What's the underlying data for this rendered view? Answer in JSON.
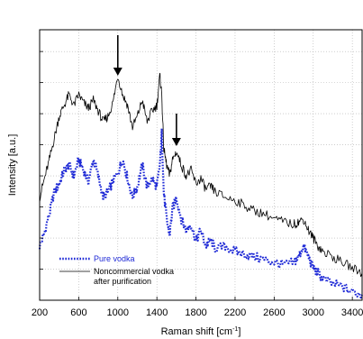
{
  "chart_data": {
    "type": "line",
    "title": "",
    "xlabel": "Raman shift [cm",
    "xlabel_sup": "-1",
    "xlabel_close": "]",
    "ylabel": "Intensity [a.u.]",
    "xlim": [
      200,
      3500
    ],
    "ylim": [
      0,
      1
    ],
    "x_ticks": [
      200,
      600,
      1000,
      1400,
      1800,
      2200,
      2600,
      3000,
      3400
    ],
    "x_tick_labels": [
      "200",
      "600",
      "1000",
      "1400",
      "1800",
      "2200",
      "2600",
      "3000",
      "3400"
    ],
    "y_tick_count": 8,
    "grid": true,
    "legend_position": "bottom-left",
    "annotations": [
      {
        "type": "arrow-down",
        "x": 1000,
        "from_y": 0.98,
        "to_y": 0.83
      },
      {
        "type": "arrow-down",
        "x": 1600,
        "from_y": 0.69,
        "to_y": 0.57
      }
    ],
    "series": [
      {
        "name": "Pure vodka",
        "style": "dotted",
        "color": "#1f2ad6",
        "x": [
          200,
          250,
          300,
          350,
          400,
          450,
          500,
          550,
          600,
          650,
          700,
          750,
          800,
          850,
          900,
          950,
          1000,
          1050,
          1100,
          1150,
          1200,
          1250,
          1300,
          1350,
          1400,
          1430,
          1450,
          1470,
          1500,
          1530,
          1560,
          1600,
          1650,
          1700,
          1750,
          1800,
          1850,
          1900,
          1950,
          2000,
          2100,
          2200,
          2300,
          2400,
          2500,
          2600,
          2700,
          2800,
          2850,
          2900,
          2950,
          3000,
          3050,
          3100,
          3200,
          3300,
          3400,
          3500
        ],
        "y": [
          0.2,
          0.25,
          0.32,
          0.4,
          0.43,
          0.48,
          0.5,
          0.46,
          0.52,
          0.48,
          0.44,
          0.52,
          0.46,
          0.38,
          0.4,
          0.44,
          0.47,
          0.52,
          0.45,
          0.38,
          0.42,
          0.5,
          0.42,
          0.45,
          0.42,
          0.5,
          0.62,
          0.4,
          0.3,
          0.24,
          0.34,
          0.38,
          0.3,
          0.26,
          0.28,
          0.22,
          0.26,
          0.2,
          0.22,
          0.19,
          0.2,
          0.18,
          0.17,
          0.16,
          0.15,
          0.14,
          0.13,
          0.14,
          0.16,
          0.2,
          0.16,
          0.12,
          0.1,
          0.08,
          0.06,
          0.05,
          0.03,
          0.02
        ]
      },
      {
        "name": "Noncommercial vodka after purification",
        "style": "solid",
        "color": "#000000",
        "x": [
          200,
          250,
          300,
          350,
          400,
          450,
          500,
          550,
          600,
          650,
          700,
          750,
          800,
          850,
          900,
          950,
          1000,
          1050,
          1100,
          1150,
          1200,
          1250,
          1300,
          1350,
          1400,
          1430,
          1450,
          1470,
          1500,
          1530,
          1560,
          1600,
          1650,
          1700,
          1750,
          1800,
          1850,
          1900,
          1950,
          2000,
          2100,
          2200,
          2300,
          2400,
          2500,
          2600,
          2700,
          2800,
          2850,
          2900,
          2950,
          3000,
          3050,
          3100,
          3200,
          3300,
          3400,
          3500
        ],
        "y": [
          0.38,
          0.45,
          0.52,
          0.6,
          0.68,
          0.72,
          0.76,
          0.72,
          0.76,
          0.73,
          0.71,
          0.74,
          0.7,
          0.66,
          0.68,
          0.73,
          0.83,
          0.76,
          0.72,
          0.64,
          0.68,
          0.74,
          0.66,
          0.7,
          0.72,
          0.83,
          0.76,
          0.56,
          0.5,
          0.46,
          0.52,
          0.55,
          0.5,
          0.46,
          0.48,
          0.43,
          0.45,
          0.41,
          0.42,
          0.4,
          0.38,
          0.37,
          0.35,
          0.33,
          0.32,
          0.3,
          0.29,
          0.28,
          0.29,
          0.3,
          0.26,
          0.23,
          0.2,
          0.18,
          0.16,
          0.14,
          0.12,
          0.1
        ]
      }
    ]
  }
}
